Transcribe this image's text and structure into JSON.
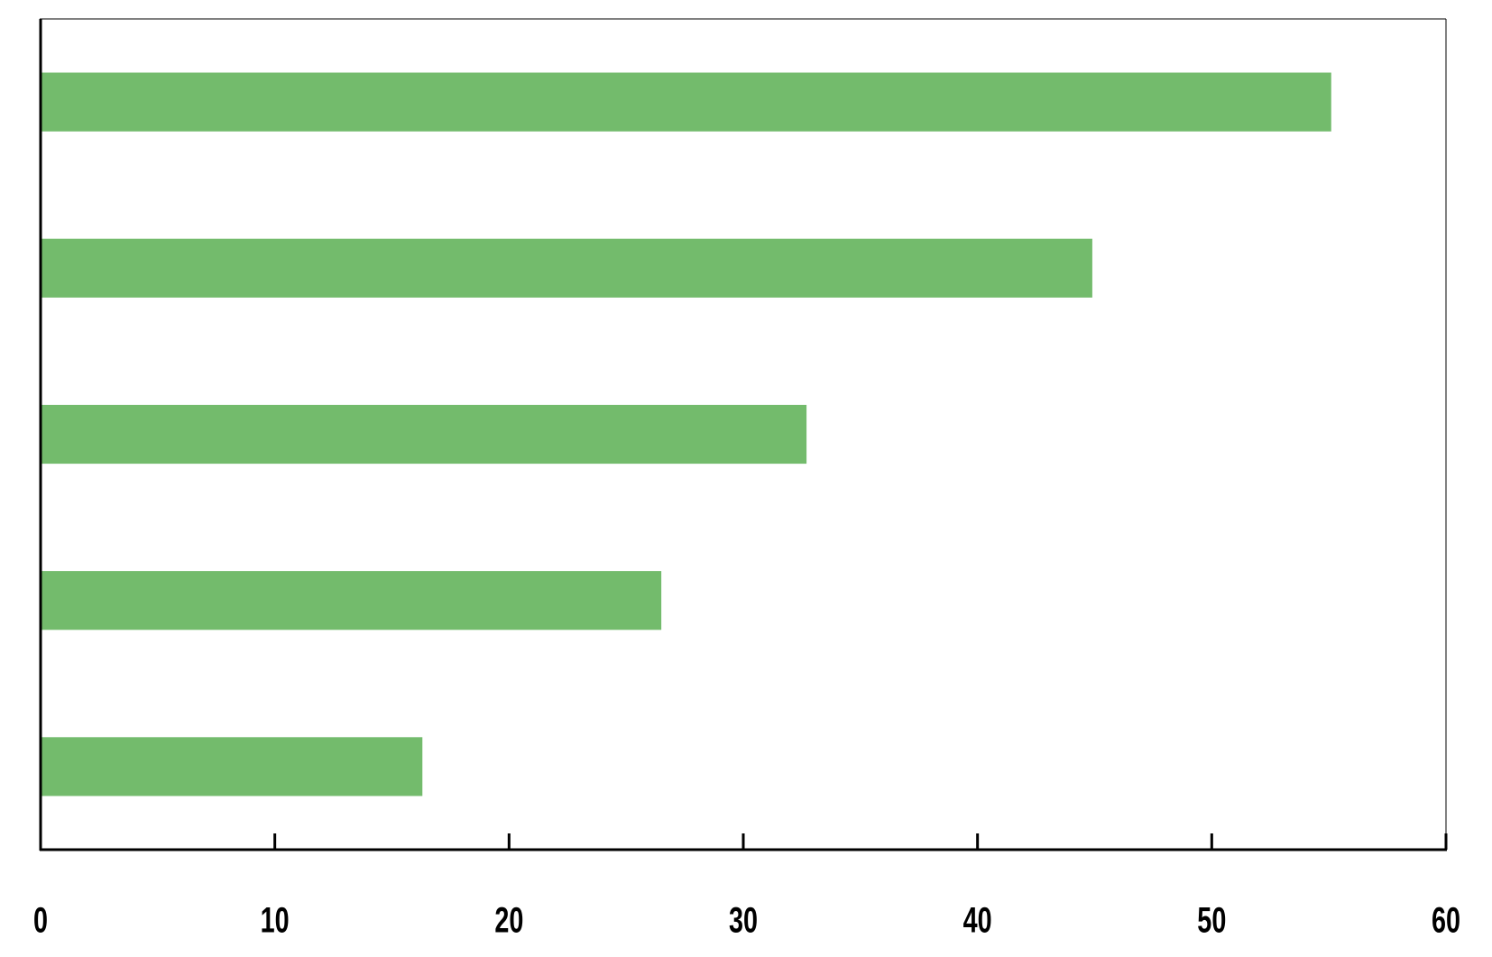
{
  "chart_data": {
    "type": "bar",
    "orientation": "horizontal",
    "categories": [
      null,
      null,
      null,
      null,
      null
    ],
    "values": [
      55.1,
      44.9,
      32.7,
      26.5,
      16.3
    ],
    "color": "#73bb6c",
    "xlim": [
      0,
      60
    ],
    "xticks": [
      0,
      10,
      20,
      30,
      40,
      50,
      60
    ],
    "grid": false
  }
}
